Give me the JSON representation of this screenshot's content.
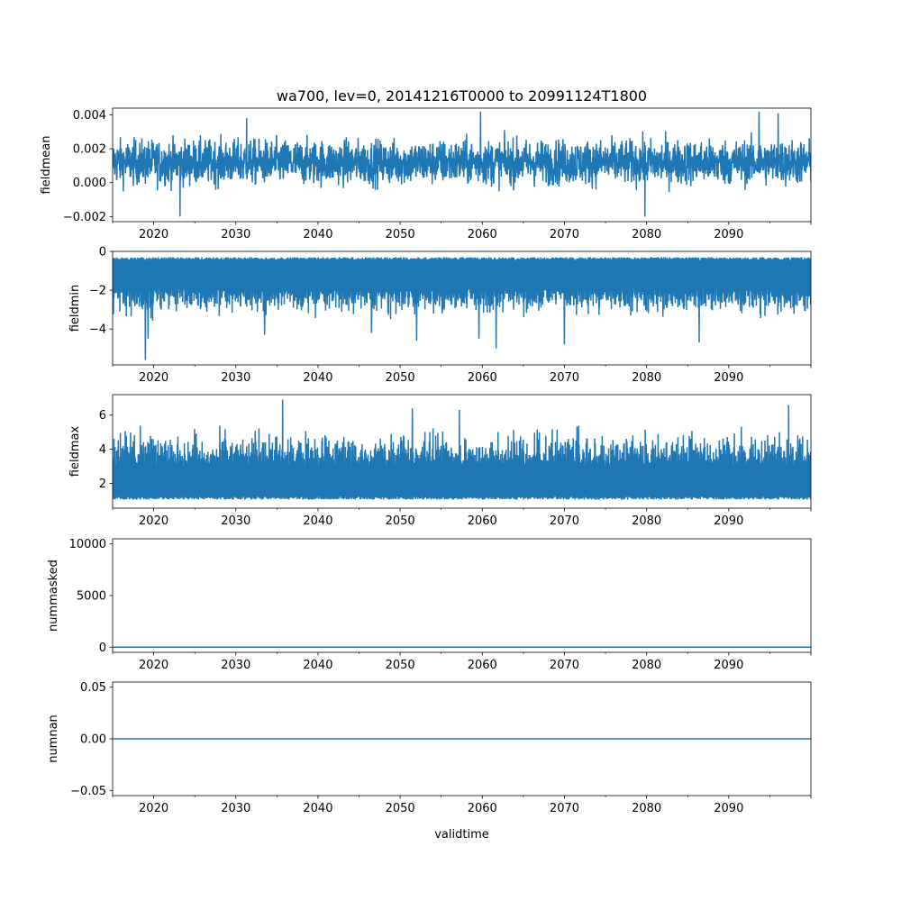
{
  "chart_data": {
    "type": "line",
    "title": "wa700, lev=0, 20141216T0000 to 20991124T1800",
    "xlabel": "validtime",
    "series_color": "#1f77b4",
    "x_range": [
      2015.0,
      2100.0
    ],
    "x_ticks": [
      {
        "value": 2020,
        "label": "2020"
      },
      {
        "value": 2030,
        "label": "2030"
      },
      {
        "value": 2040,
        "label": "2040"
      },
      {
        "value": 2050,
        "label": "2050"
      },
      {
        "value": 2060,
        "label": "2060"
      },
      {
        "value": 2070,
        "label": "2070"
      },
      {
        "value": 2080,
        "label": "2080"
      },
      {
        "value": 2090,
        "label": "2090"
      }
    ],
    "panels": [
      {
        "id": "fieldmean",
        "ylabel": "fieldmean",
        "ylim": [
          -0.0023,
          0.0044
        ],
        "yticks": [
          {
            "value": -0.002,
            "label": "−0.002"
          },
          {
            "value": 0.0,
            "label": "0.000"
          },
          {
            "value": 0.002,
            "label": "0.002"
          },
          {
            "value": 0.004,
            "label": "0.004"
          }
        ],
        "signal": {
          "mode": "band",
          "center": 0.0012,
          "spread": 0.0012,
          "max": 0.0042,
          "min": -0.002
        },
        "spikes": [
          {
            "x": 2023.2,
            "y": -0.002
          },
          {
            "x": 2031.3,
            "y": 0.0038
          },
          {
            "x": 2059.8,
            "y": 0.0042
          },
          {
            "x": 2079.8,
            "y": -0.002
          },
          {
            "x": 2093.7,
            "y": 0.0042
          },
          {
            "x": 2096.0,
            "y": 0.0041
          }
        ]
      },
      {
        "id": "fieldmin",
        "ylabel": "fieldmin",
        "ylim": [
          -5.85,
          0.0
        ],
        "yticks": [
          {
            "value": -4,
            "label": "−4"
          },
          {
            "value": -2,
            "label": "−2"
          },
          {
            "value": 0,
            "label": "0"
          }
        ],
        "signal": {
          "mode": "lower",
          "top": -0.3,
          "base": -1.9,
          "spread": 0.6,
          "min": -5.6
        },
        "spikes": [
          {
            "x": 2019.0,
            "y": -5.6
          },
          {
            "x": 2019.3,
            "y": -4.5
          },
          {
            "x": 2033.5,
            "y": -4.3
          },
          {
            "x": 2046.5,
            "y": -4.2
          },
          {
            "x": 2052.0,
            "y": -4.6
          },
          {
            "x": 2059.6,
            "y": -4.5
          },
          {
            "x": 2061.7,
            "y": -5.0
          },
          {
            "x": 2070.0,
            "y": -4.8
          },
          {
            "x": 2086.4,
            "y": -4.7
          }
        ]
      },
      {
        "id": "fieldmax",
        "ylabel": "fieldmax",
        "ylim": [
          0.55,
          7.2
        ],
        "yticks": [
          {
            "value": 2,
            "label": "2"
          },
          {
            "value": 4,
            "label": "4"
          },
          {
            "value": 6,
            "label": "6"
          }
        ],
        "signal": {
          "mode": "upper",
          "bottom": 1.05,
          "base": 3.0,
          "spread": 0.9,
          "max": 6.9
        },
        "spikes": [
          {
            "x": 2035.7,
            "y": 6.9
          },
          {
            "x": 2051.5,
            "y": 6.4
          },
          {
            "x": 2057.2,
            "y": 6.3
          },
          {
            "x": 2097.3,
            "y": 6.6
          }
        ]
      },
      {
        "id": "nummasked",
        "ylabel": "nummasked",
        "ylim": [
          -500,
          10500
        ],
        "yticks": [
          {
            "value": 0,
            "label": "0"
          },
          {
            "value": 5000,
            "label": "5000"
          },
          {
            "value": 10000,
            "label": "10000"
          }
        ],
        "signal": {
          "mode": "flat",
          "value": 0
        }
      },
      {
        "id": "numnan",
        "ylabel": "numnan",
        "ylim": [
          -0.055,
          0.055
        ],
        "yticks": [
          {
            "value": -0.05,
            "label": "−0.05"
          },
          {
            "value": 0.0,
            "label": "0.00"
          },
          {
            "value": 0.05,
            "label": "0.05"
          }
        ],
        "signal": {
          "mode": "flat",
          "value": 0
        }
      }
    ]
  }
}
